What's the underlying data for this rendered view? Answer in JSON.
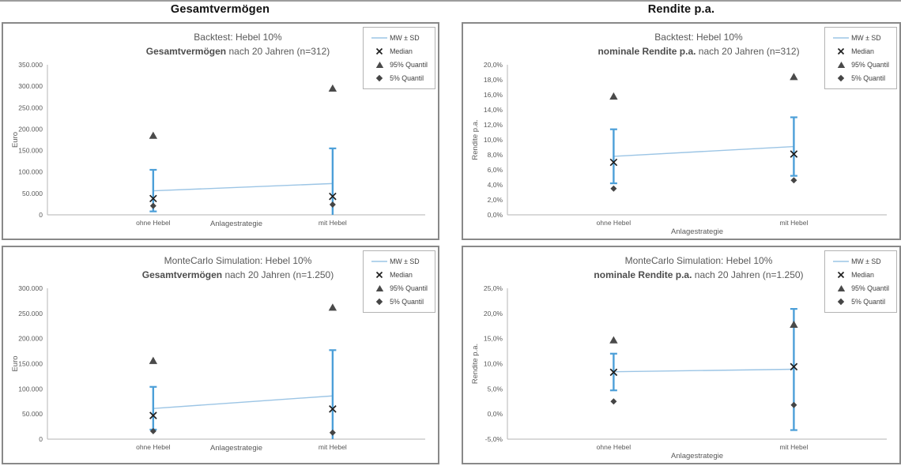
{
  "page": {
    "left_header": "Gesamtvermögen",
    "right_header": "Rendite p.a."
  },
  "legend": {
    "items": [
      {
        "marker": "mw-sd-line",
        "label": "MW ± SD"
      },
      {
        "marker": "x",
        "label": "Median"
      },
      {
        "marker": "triangle",
        "label": "95% Quantil"
      },
      {
        "marker": "diamond",
        "label": "5% Quantil"
      }
    ]
  },
  "colors": {
    "error_bar": "#4C9FD8",
    "mw_line": "#9CC5E5",
    "axis": "#C2C2C2",
    "text_gray": "#595959",
    "q95_marker": "#4A4A4A",
    "q5_marker": "#454545",
    "median_marker": "#1F1F1F"
  },
  "chart_data": [
    {
      "type": "scatter",
      "title_line1": "Backtest: Hebel 10%",
      "title_bold": "Gesamtvermögen",
      "title_rest": " nach 20 Jahren (n=312)",
      "ylabel": "Euro",
      "xlabel": "Anlagestrategie",
      "categories": [
        "ohne Hebel",
        "mit Hebel"
      ],
      "ylim": [
        0,
        350000
      ],
      "ytick_step": 50000,
      "ytick_labels": [
        "0",
        "50.000",
        "100.000",
        "150.000",
        "200.000",
        "250.000",
        "300.000",
        "350.000"
      ],
      "x_title_same_line": true,
      "series": {
        "mw": [
          56000,
          73000
        ],
        "sd_top": [
          105000,
          155000
        ],
        "sd_bottom": [
          8000,
          -9000
        ],
        "median": [
          38000,
          43000
        ],
        "q95": [
          185000,
          295000
        ],
        "q5": [
          21000,
          24000
        ]
      }
    },
    {
      "type": "scatter",
      "title_line1": "Backtest: Hebel 10%",
      "title_bold": "nominale Rendite p.a.",
      "title_rest": " nach 20 Jahren (n=312)",
      "ylabel": "Rendite p.a.",
      "xlabel": "Anlagestrategie",
      "categories": [
        "ohne Hebel",
        "mit Hebel"
      ],
      "ylim": [
        0,
        20
      ],
      "ytick_step": 2,
      "ytick_labels": [
        "0,0%",
        "2,0%",
        "4,0%",
        "6,0%",
        "8,0%",
        "10,0%",
        "12,0%",
        "14,0%",
        "16,0%",
        "18,0%",
        "20,0%"
      ],
      "x_title_same_line": false,
      "series": {
        "mw": [
          7.8,
          9.1
        ],
        "sd_top": [
          11.4,
          13.0
        ],
        "sd_bottom": [
          4.2,
          5.2
        ],
        "median": [
          7.0,
          8.1
        ],
        "q95": [
          15.8,
          18.4
        ],
        "q5": [
          3.5,
          4.6
        ]
      }
    },
    {
      "type": "scatter",
      "title_line1": "MonteCarlo Simulation: Hebel 10%",
      "title_bold": "Gesamtvermögen",
      "title_rest": " nach 20 Jahren (n=1.250)",
      "ylabel": "Euro",
      "xlabel": "Anlagestrategie",
      "categories": [
        "ohne Hebel",
        "mit Hebel"
      ],
      "ylim": [
        0,
        300000
      ],
      "ytick_step": 50000,
      "ytick_labels": [
        "0",
        "50.000",
        "100.000",
        "150.000",
        "200.000",
        "250.000",
        "300.000"
      ],
      "x_title_same_line": true,
      "series": {
        "mw": [
          61000,
          86000
        ],
        "sd_top": [
          104000,
          177000
        ],
        "sd_bottom": [
          19000,
          -5000
        ],
        "median": [
          47000,
          60000
        ],
        "q95": [
          156000,
          262000
        ],
        "q5": [
          16000,
          13000
        ]
      }
    },
    {
      "type": "scatter",
      "title_line1": "MonteCarlo Simulation: Hebel 10%",
      "title_bold": "nominale Rendite p.a.",
      "title_rest": " nach 20 Jahren (n=1.250)",
      "ylabel": "Rendite p.a.",
      "xlabel": "Anlagestrategie",
      "categories": [
        "ohne Hebel",
        "mit Hebel"
      ],
      "ylim": [
        -5,
        25
      ],
      "ytick_step": 5,
      "ytick_labels": [
        "-5,0%",
        "0,0%",
        "5,0%",
        "10,0%",
        "15,0%",
        "20,0%",
        "25,0%"
      ],
      "x_title_same_line": false,
      "series": {
        "mw": [
          8.4,
          8.9
        ],
        "sd_top": [
          12.0,
          20.9
        ],
        "sd_bottom": [
          4.7,
          -3.2
        ],
        "median": [
          8.3,
          9.4
        ],
        "q95": [
          14.7,
          17.8
        ],
        "q5": [
          2.5,
          1.8
        ]
      }
    }
  ]
}
